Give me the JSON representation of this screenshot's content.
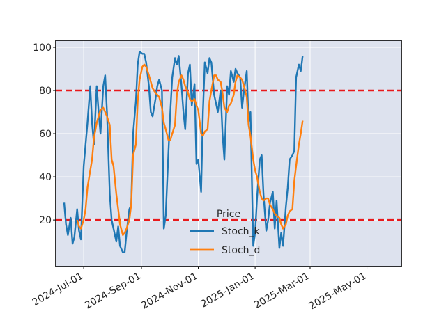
{
  "chart_data": {
    "type": "line",
    "title": "",
    "xlabel": "",
    "ylabel": "",
    "ylim": [
      0,
      100
    ],
    "y_ticks": [
      20,
      40,
      60,
      80,
      100
    ],
    "x_ticks": [
      "2024-Jul-01",
      "2024-Sep-01",
      "2024-Nov-01",
      "2025-Jan-01",
      "2025-Mar-01",
      "2025-May-01"
    ],
    "x_tick_dates": [
      "2024-07-01",
      "2024-09-01",
      "2024-11-01",
      "2025-01-01",
      "2025-03-01",
      "2025-05-01"
    ],
    "x_range": [
      "2024-06-01",
      "2025-06-07"
    ],
    "reference_lines": [
      {
        "value": 80,
        "color": "#e8191c",
        "style": "dashed"
      },
      {
        "value": 20,
        "color": "#e8191c",
        "style": "dashed"
      }
    ],
    "background_color": "#dde2ee",
    "legend": {
      "title": "Price",
      "position": "bottom-center"
    },
    "series": [
      {
        "name": "Stoch_k",
        "color": "#1f77b4",
        "points": [
          [
            "2024-06-10",
            28
          ],
          [
            "2024-06-12",
            18
          ],
          [
            "2024-06-14",
            13
          ],
          [
            "2024-06-17",
            21
          ],
          [
            "2024-06-19",
            9
          ],
          [
            "2024-06-21",
            12
          ],
          [
            "2024-06-24",
            25
          ],
          [
            "2024-06-26",
            15
          ],
          [
            "2024-06-28",
            11
          ],
          [
            "2024-07-01",
            45
          ],
          [
            "2024-07-03",
            55
          ],
          [
            "2024-07-05",
            65
          ],
          [
            "2024-07-08",
            82
          ],
          [
            "2024-07-10",
            65
          ],
          [
            "2024-07-12",
            55
          ],
          [
            "2024-07-15",
            82
          ],
          [
            "2024-07-17",
            70
          ],
          [
            "2024-07-19",
            60
          ],
          [
            "2024-07-22",
            82
          ],
          [
            "2024-07-24",
            87
          ],
          [
            "2024-07-26",
            70
          ],
          [
            "2024-07-29",
            32
          ],
          [
            "2024-07-31",
            20
          ],
          [
            "2024-08-02",
            16
          ],
          [
            "2024-08-05",
            10
          ],
          [
            "2024-08-07",
            17
          ],
          [
            "2024-08-09",
            8
          ],
          [
            "2024-08-12",
            5
          ],
          [
            "2024-08-14",
            5
          ],
          [
            "2024-08-16",
            14
          ],
          [
            "2024-08-19",
            25
          ],
          [
            "2024-08-21",
            27
          ],
          [
            "2024-08-23",
            60
          ],
          [
            "2024-08-26",
            75
          ],
          [
            "2024-08-28",
            92
          ],
          [
            "2024-08-30",
            98
          ],
          [
            "2024-09-02",
            97
          ],
          [
            "2024-09-04",
            97
          ],
          [
            "2024-09-06",
            93
          ],
          [
            "2024-09-09",
            82
          ],
          [
            "2024-09-11",
            70
          ],
          [
            "2024-09-13",
            68
          ],
          [
            "2024-09-16",
            76
          ],
          [
            "2024-09-18",
            82
          ],
          [
            "2024-09-20",
            85
          ],
          [
            "2024-09-23",
            80
          ],
          [
            "2024-09-25",
            16
          ],
          [
            "2024-09-27",
            22
          ],
          [
            "2024-09-30",
            52
          ],
          [
            "2024-10-02",
            70
          ],
          [
            "2024-10-04",
            86
          ],
          [
            "2024-10-07",
            95
          ],
          [
            "2024-10-09",
            92
          ],
          [
            "2024-10-11",
            96
          ],
          [
            "2024-10-14",
            82
          ],
          [
            "2024-10-16",
            70
          ],
          [
            "2024-10-18",
            62
          ],
          [
            "2024-10-21",
            88
          ],
          [
            "2024-10-23",
            92
          ],
          [
            "2024-10-25",
            73
          ],
          [
            "2024-10-28",
            83
          ],
          [
            "2024-10-30",
            46
          ],
          [
            "2024-11-01",
            48
          ],
          [
            "2024-11-04",
            33
          ],
          [
            "2024-11-06",
            70
          ],
          [
            "2024-11-08",
            93
          ],
          [
            "2024-11-11",
            88
          ],
          [
            "2024-11-13",
            95
          ],
          [
            "2024-11-15",
            93
          ],
          [
            "2024-11-18",
            78
          ],
          [
            "2024-11-20",
            74
          ],
          [
            "2024-11-22",
            70
          ],
          [
            "2024-11-25",
            80
          ],
          [
            "2024-11-27",
            60
          ],
          [
            "2024-11-29",
            48
          ],
          [
            "2024-12-02",
            82
          ],
          [
            "2024-12-04",
            78
          ],
          [
            "2024-12-06",
            89
          ],
          [
            "2024-12-09",
            84
          ],
          [
            "2024-12-11",
            90
          ],
          [
            "2024-12-13",
            88
          ],
          [
            "2024-12-16",
            86
          ],
          [
            "2024-12-18",
            72
          ],
          [
            "2024-12-20",
            80
          ],
          [
            "2024-12-23",
            89
          ],
          [
            "2024-12-25",
            65
          ],
          [
            "2024-12-27",
            70
          ],
          [
            "2024-12-30",
            8
          ],
          [
            "2025-01-01",
            14
          ],
          [
            "2025-01-03",
            30
          ],
          [
            "2025-01-06",
            48
          ],
          [
            "2025-01-08",
            50
          ],
          [
            "2025-01-10",
            32
          ],
          [
            "2025-01-13",
            15
          ],
          [
            "2025-01-15",
            20
          ],
          [
            "2025-01-17",
            28
          ],
          [
            "2025-01-20",
            33
          ],
          [
            "2025-01-22",
            16
          ],
          [
            "2025-01-24",
            29
          ],
          [
            "2025-01-27",
            7
          ],
          [
            "2025-01-29",
            14
          ],
          [
            "2025-01-31",
            8
          ],
          [
            "2025-02-03",
            26
          ],
          [
            "2025-02-05",
            35
          ],
          [
            "2025-02-07",
            48
          ],
          [
            "2025-02-10",
            50
          ],
          [
            "2025-02-12",
            52
          ],
          [
            "2025-02-14",
            86
          ],
          [
            "2025-02-17",
            92
          ],
          [
            "2025-02-19",
            89
          ],
          [
            "2025-02-21",
            96
          ]
        ]
      },
      {
        "name": "Stoch_d",
        "color": "#ff7f0e",
        "points": [
          [
            "2024-06-24",
            20
          ],
          [
            "2024-06-26",
            17
          ],
          [
            "2024-06-28",
            16
          ],
          [
            "2024-07-01",
            20
          ],
          [
            "2024-07-03",
            25
          ],
          [
            "2024-07-05",
            35
          ],
          [
            "2024-07-08",
            43
          ],
          [
            "2024-07-10",
            48
          ],
          [
            "2024-07-12",
            58
          ],
          [
            "2024-07-15",
            65
          ],
          [
            "2024-07-17",
            68
          ],
          [
            "2024-07-19",
            71
          ],
          [
            "2024-07-22",
            72
          ],
          [
            "2024-07-24",
            70
          ],
          [
            "2024-07-26",
            68
          ],
          [
            "2024-07-29",
            64
          ],
          [
            "2024-07-31",
            48
          ],
          [
            "2024-08-02",
            45
          ],
          [
            "2024-08-05",
            32
          ],
          [
            "2024-08-07",
            25
          ],
          [
            "2024-08-09",
            18
          ],
          [
            "2024-08-12",
            13
          ],
          [
            "2024-08-14",
            14
          ],
          [
            "2024-08-16",
            16
          ],
          [
            "2024-08-19",
            20
          ],
          [
            "2024-08-21",
            27
          ],
          [
            "2024-08-23",
            50
          ],
          [
            "2024-08-26",
            55
          ],
          [
            "2024-08-28",
            75
          ],
          [
            "2024-08-30",
            85
          ],
          [
            "2024-09-02",
            91
          ],
          [
            "2024-09-04",
            92
          ],
          [
            "2024-09-06",
            91
          ],
          [
            "2024-09-09",
            87
          ],
          [
            "2024-09-11",
            84
          ],
          [
            "2024-09-13",
            81
          ],
          [
            "2024-09-16",
            79
          ],
          [
            "2024-09-18",
            78
          ],
          [
            "2024-09-20",
            77
          ],
          [
            "2024-09-23",
            72
          ],
          [
            "2024-09-25",
            65
          ],
          [
            "2024-09-27",
            62
          ],
          [
            "2024-09-30",
            57
          ],
          [
            "2024-10-02",
            57
          ],
          [
            "2024-10-04",
            60
          ],
          [
            "2024-10-07",
            64
          ],
          [
            "2024-10-09",
            78
          ],
          [
            "2024-10-11",
            84
          ],
          [
            "2024-10-14",
            87
          ],
          [
            "2024-10-16",
            85
          ],
          [
            "2024-10-18",
            82
          ],
          [
            "2024-10-21",
            79
          ],
          [
            "2024-10-23",
            76
          ],
          [
            "2024-10-25",
            75
          ],
          [
            "2024-10-28",
            76
          ],
          [
            "2024-10-30",
            73
          ],
          [
            "2024-11-01",
            71
          ],
          [
            "2024-11-04",
            60
          ],
          [
            "2024-11-06",
            59
          ],
          [
            "2024-11-08",
            61
          ],
          [
            "2024-11-11",
            62
          ],
          [
            "2024-11-13",
            75
          ],
          [
            "2024-11-15",
            80
          ],
          [
            "2024-11-18",
            87
          ],
          [
            "2024-11-20",
            87
          ],
          [
            "2024-11-22",
            85
          ],
          [
            "2024-11-25",
            84
          ],
          [
            "2024-11-27",
            79
          ],
          [
            "2024-11-29",
            72
          ],
          [
            "2024-12-02",
            70
          ],
          [
            "2024-12-04",
            73
          ],
          [
            "2024-12-06",
            74
          ],
          [
            "2024-12-09",
            78
          ],
          [
            "2024-12-11",
            84
          ],
          [
            "2024-12-13",
            87
          ],
          [
            "2024-12-16",
            86
          ],
          [
            "2024-12-18",
            85
          ],
          [
            "2024-12-20",
            82
          ],
          [
            "2024-12-23",
            77
          ],
          [
            "2024-12-25",
            64
          ],
          [
            "2024-12-27",
            59
          ],
          [
            "2024-12-30",
            48
          ],
          [
            "2025-01-01",
            43
          ],
          [
            "2025-01-03",
            40
          ],
          [
            "2025-01-06",
            33
          ],
          [
            "2025-01-08",
            30
          ],
          [
            "2025-01-10",
            29
          ],
          [
            "2025-01-13",
            30
          ],
          [
            "2025-01-15",
            30
          ],
          [
            "2025-01-17",
            27
          ],
          [
            "2025-01-20",
            25
          ],
          [
            "2025-01-22",
            23
          ],
          [
            "2025-01-24",
            22
          ],
          [
            "2025-01-27",
            21
          ],
          [
            "2025-01-29",
            18
          ],
          [
            "2025-01-31",
            16
          ],
          [
            "2025-02-03",
            18
          ],
          [
            "2025-02-05",
            22
          ],
          [
            "2025-02-07",
            24
          ],
          [
            "2025-02-10",
            25
          ],
          [
            "2025-02-12",
            38
          ],
          [
            "2025-02-14",
            45
          ],
          [
            "2025-02-17",
            55
          ],
          [
            "2025-02-19",
            60
          ],
          [
            "2025-02-21",
            66
          ]
        ]
      }
    ]
  }
}
